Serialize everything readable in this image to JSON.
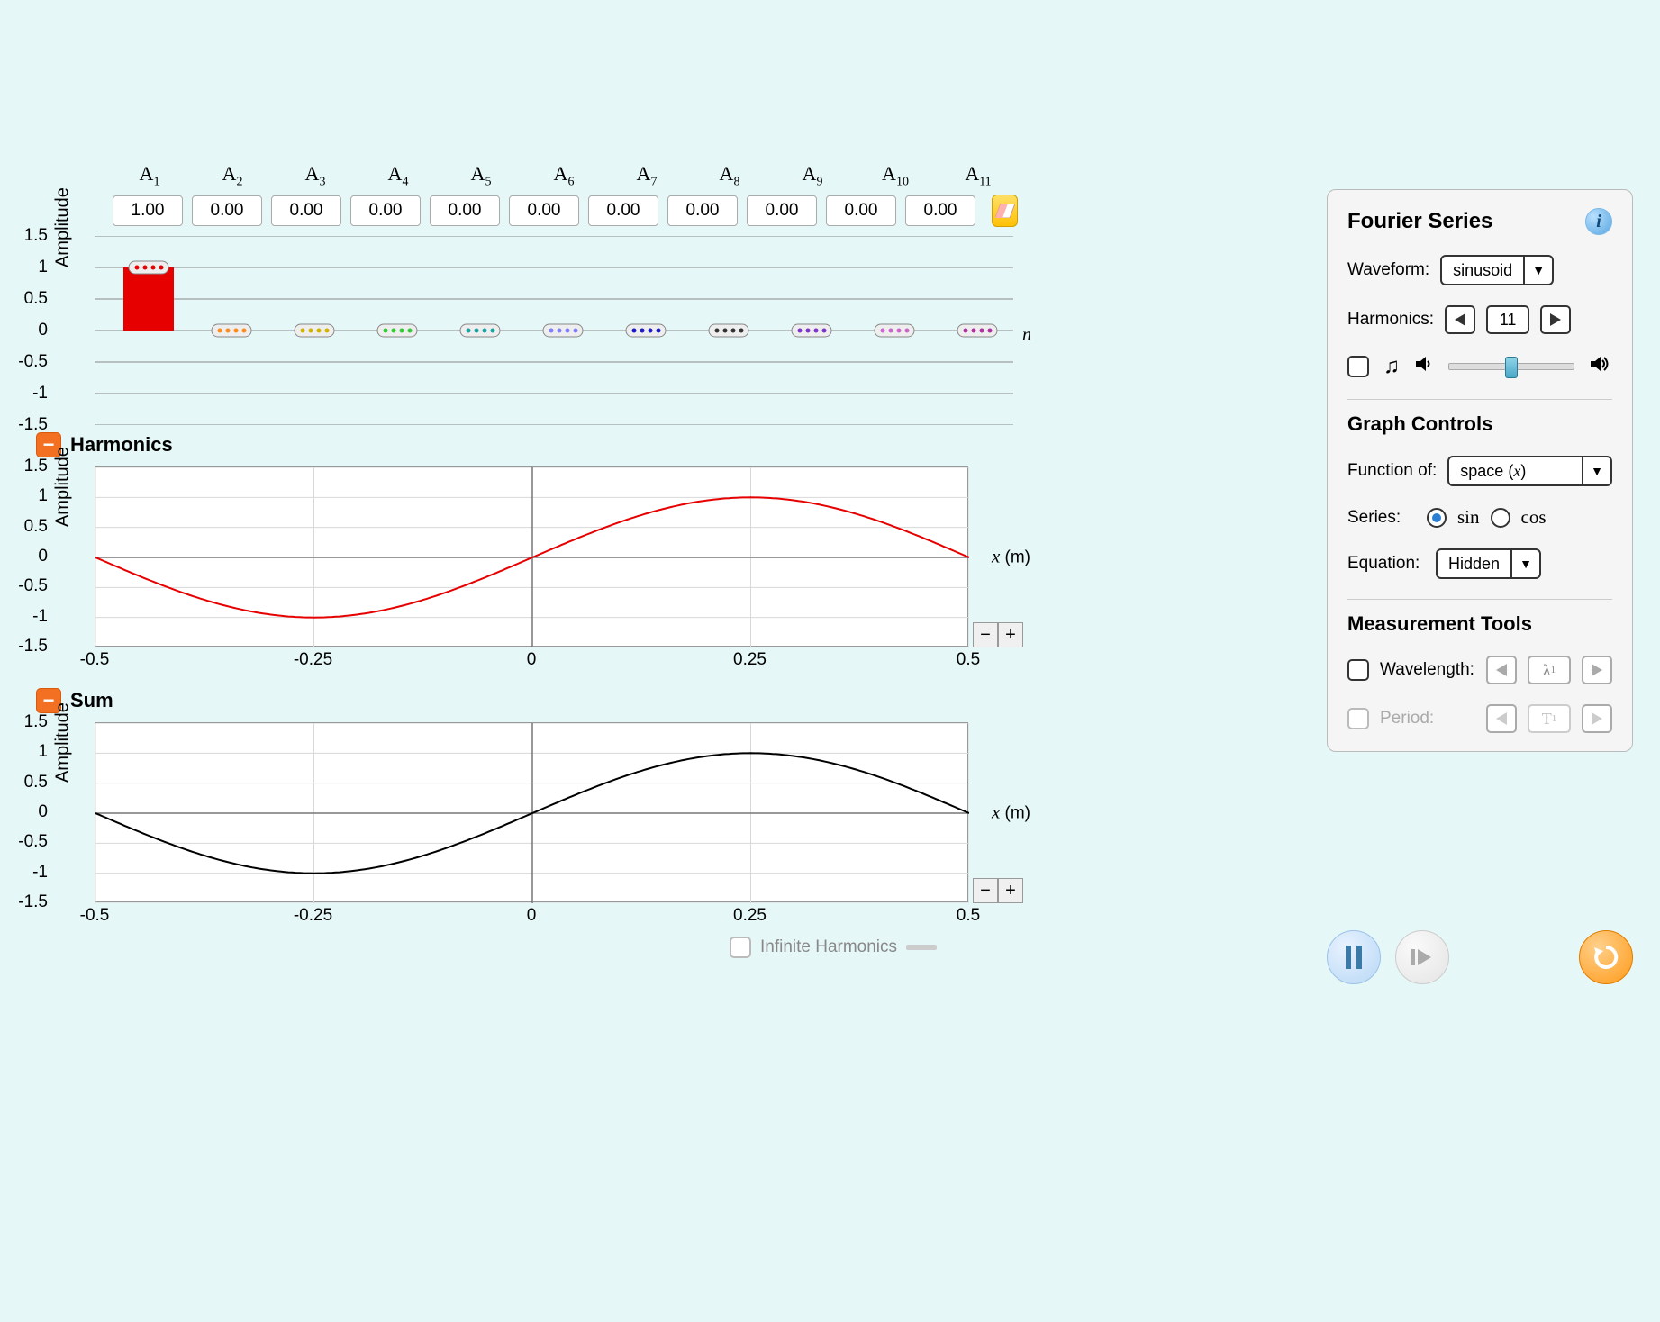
{
  "background_color": "#e6f7f7",
  "amplitude_bar": {
    "y_axis_title": "Amplitude",
    "n_label": "n",
    "ylim": [
      -1.5,
      1.5
    ],
    "ytick_step": 0.5,
    "yticks": [
      "1.5",
      "1",
      "0.5",
      "0",
      "-0.5",
      "-1",
      "-1.5"
    ],
    "gridline_color": "#888888",
    "harmonics": [
      {
        "idx": 1,
        "label": "A",
        "sub": "1",
        "value": "1.00",
        "bar_value": 1.0,
        "color": "#e60000"
      },
      {
        "idx": 2,
        "label": "A",
        "sub": "2",
        "value": "0.00",
        "bar_value": 0.0,
        "color": "#ff8c1a"
      },
      {
        "idx": 3,
        "label": "A",
        "sub": "3",
        "value": "0.00",
        "bar_value": 0.0,
        "color": "#d4b300"
      },
      {
        "idx": 4,
        "label": "A",
        "sub": "4",
        "value": "0.00",
        "bar_value": 0.0,
        "color": "#33cc33"
      },
      {
        "idx": 5,
        "label": "A",
        "sub": "5",
        "value": "0.00",
        "bar_value": 0.0,
        "color": "#1aa3a3"
      },
      {
        "idx": 6,
        "label": "A",
        "sub": "6",
        "value": "0.00",
        "bar_value": 0.0,
        "color": "#8080ff"
      },
      {
        "idx": 7,
        "label": "A",
        "sub": "7",
        "value": "0.00",
        "bar_value": 0.0,
        "color": "#1a1acc"
      },
      {
        "idx": 8,
        "label": "A",
        "sub": "8",
        "value": "0.00",
        "bar_value": 0.0,
        "color": "#333333"
      },
      {
        "idx": 9,
        "label": "A",
        "sub": "9",
        "value": "0.00",
        "bar_value": 0.0,
        "color": "#8033cc"
      },
      {
        "idx": 10,
        "label": "A",
        "sub": "10",
        "value": "0.00",
        "bar_value": 0.0,
        "color": "#cc66cc"
      },
      {
        "idx": 11,
        "label": "A",
        "sub": "11",
        "value": "0.00",
        "bar_value": 0.0,
        "color": "#b030a0"
      }
    ]
  },
  "harmonics_chart": {
    "title": "Harmonics",
    "y_axis_title": "Amplitude",
    "x_axis_label": "x",
    "x_axis_unit": "(m)",
    "xlim": [
      -0.5,
      0.5
    ],
    "ylim": [
      -1.5,
      1.5
    ],
    "xticks": [
      "-0.5",
      "-0.25",
      "0",
      "0.25",
      "0.5"
    ],
    "yticks": [
      "1.5",
      "1",
      "0.5",
      "0",
      "-0.5",
      "-1",
      "-1.5"
    ],
    "curve_color": "#e60000",
    "background_color": "#ffffff",
    "grid_color": "#d8d8d8",
    "zoom_out": "−",
    "zoom_in": "+",
    "series_type": "sin",
    "amplitude": 1.0,
    "period": 1.0
  },
  "sum_chart": {
    "title": "Sum",
    "y_axis_title": "Amplitude",
    "x_axis_label": "x",
    "x_axis_unit": "(m)",
    "xlim": [
      -0.5,
      0.5
    ],
    "ylim": [
      -1.5,
      1.5
    ],
    "xticks": [
      "-0.5",
      "-0.25",
      "0",
      "0.25",
      "0.5"
    ],
    "yticks": [
      "1.5",
      "1",
      "0.5",
      "0",
      "-0.5",
      "-1",
      "-1.5"
    ],
    "curve_color": "#000000",
    "background_color": "#ffffff",
    "grid_color": "#d8d8d8",
    "zoom_out": "−",
    "zoom_in": "+",
    "series_type": "sin",
    "amplitude": 1.0,
    "period": 1.0
  },
  "infinite_harmonics": {
    "label": "Infinite Harmonics",
    "checked": false
  },
  "panel": {
    "title": "Fourier Series",
    "waveform": {
      "label": "Waveform:",
      "value": "sinusoid"
    },
    "harmonics": {
      "label": "Harmonics:",
      "value": "11"
    },
    "sound": {
      "checked": false,
      "slider_pct": 50
    },
    "graph_controls_title": "Graph Controls",
    "function_of": {
      "label": "Function of:",
      "value": "space (x)"
    },
    "series": {
      "label": "Series:",
      "sin": "sin",
      "cos": "cos",
      "selected": "sin"
    },
    "equation": {
      "label": "Equation:",
      "value": "Hidden"
    },
    "measurement_title": "Measurement Tools",
    "wavelength": {
      "label": "Wavelength:",
      "value_symbol": "λ",
      "value_sub": "1",
      "enabled": true
    },
    "period": {
      "label": "Period:",
      "value_symbol": "T",
      "value_sub": "1",
      "enabled": false
    }
  }
}
